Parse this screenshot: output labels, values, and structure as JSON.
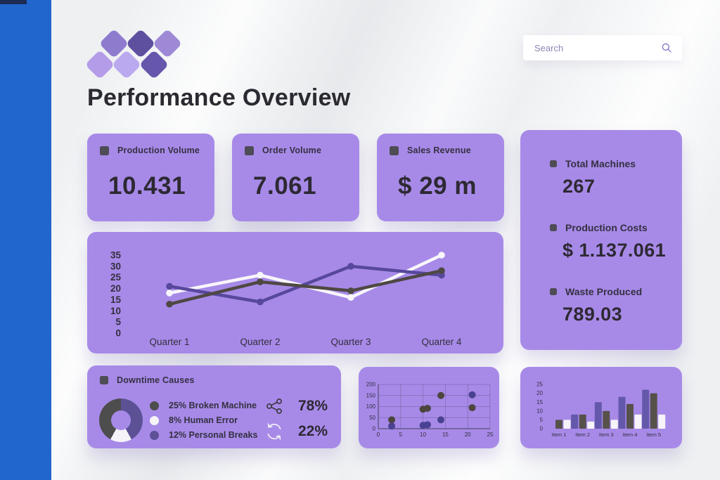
{
  "colors": {
    "sidebar_bg": "#2166cd",
    "card_purple": "#a78ae8",
    "text_dark": "#2d2933",
    "bullet_dark": "#4e4c55"
  },
  "sidebar": {
    "items": [
      {
        "icon": "home"
      },
      {
        "icon": "gauge"
      },
      {
        "icon": "toolbox"
      },
      {
        "icon": "users"
      }
    ],
    "power": {
      "icon": "power"
    }
  },
  "logo_diamonds": [
    {
      "color": "#8f7bce"
    },
    {
      "color": "#5e509f"
    },
    {
      "color": "#9d89d6"
    },
    {
      "color": "#b49ce9"
    },
    {
      "color": "#bba9f0"
    },
    {
      "color": "#6657ad"
    }
  ],
  "header": {
    "title": "Performance Overview",
    "search_placeholder": "Search"
  },
  "kpis": [
    {
      "label": "Production Volume",
      "value": "10.431"
    },
    {
      "label": "Order Volume",
      "value": "7.061"
    },
    {
      "label": "Sales Revenue",
      "value": "$ 29 m"
    }
  ],
  "side_stats": [
    {
      "label": "Total Machines",
      "value": "267"
    },
    {
      "label": "Production Costs",
      "value": "$ 1.137.061"
    },
    {
      "label": "Waste Produced",
      "value": "789.03"
    }
  ],
  "chart_data": [
    {
      "type": "line",
      "categories": [
        "Quarter 1",
        "Quarter 2",
        "Quarter 3",
        "Quarter 4"
      ],
      "yticks": [
        35,
        30,
        25,
        20,
        15,
        10,
        5,
        0
      ],
      "ylim": [
        0,
        35
      ],
      "grid": false,
      "legend": "none",
      "series": [
        {
          "name": "white-series",
          "color": "#f8f6fb",
          "values": [
            18,
            26,
            16,
            35
          ]
        },
        {
          "name": "charcoal-series",
          "color": "#4e4843",
          "values": [
            13,
            23,
            19,
            28
          ]
        },
        {
          "name": "purple-series",
          "color": "#57489c",
          "values": [
            21,
            14,
            30,
            26
          ]
        }
      ]
    },
    {
      "type": "pie",
      "title": "Downtime Causes",
      "slices": [
        {
          "label": "25% Broken Machine",
          "pct": 25,
          "color": "#4d4d4d"
        },
        {
          "label": "8% Human Error",
          "pct": 8,
          "color": "#f5f3f7"
        },
        {
          "label": "12% Personal Breaks",
          "pct": 12,
          "color": "#5d5196"
        }
      ],
      "donut_arcs": [
        {
          "color": "#5d5196",
          "pct": 42
        },
        {
          "color": "#f5f3f7",
          "pct": 16
        },
        {
          "color": "#4d4d4d",
          "pct": 42
        }
      ],
      "stats": [
        {
          "icon": "share",
          "value": "78%"
        },
        {
          "icon": "refresh",
          "value": "22%"
        }
      ]
    },
    {
      "type": "scatter",
      "xticks": [
        0,
        5,
        10,
        15,
        20,
        25
      ],
      "yticks": [
        0,
        50,
        100,
        150,
        200
      ],
      "xlim": [
        0,
        25
      ],
      "ylim": [
        0,
        200
      ],
      "grid": true,
      "series": [
        {
          "name": "charcoal-dots",
          "color": "#4c463f",
          "points": [
            [
              3,
              40
            ],
            [
              10,
              88
            ],
            [
              11,
              92
            ],
            [
              14,
              150
            ],
            [
              21,
              95
            ]
          ]
        },
        {
          "name": "purple-dots",
          "color": "#4a4192",
          "points": [
            [
              3,
              12
            ],
            [
              10,
              15
            ],
            [
              11,
              18
            ],
            [
              14,
              40
            ],
            [
              21,
              153
            ]
          ]
        }
      ]
    },
    {
      "type": "bar",
      "categories": [
        "Item 1",
        "Item 2",
        "Item 3",
        "Item 4",
        "Item 5"
      ],
      "yticks": [
        25,
        20,
        15,
        10,
        5,
        0
      ],
      "ylim": [
        0,
        25
      ],
      "grid": false,
      "series": [
        {
          "name": "purple-bars",
          "color": "#6458ab",
          "values": [
            0,
            8,
            15,
            18,
            22
          ]
        },
        {
          "name": "charcoal-bars",
          "color": "#57514b",
          "values": [
            5,
            8,
            10,
            14,
            20
          ]
        },
        {
          "name": "white-bars",
          "color": "#f6f3f9",
          "values": [
            5,
            4,
            5,
            8,
            8
          ]
        }
      ]
    }
  ]
}
